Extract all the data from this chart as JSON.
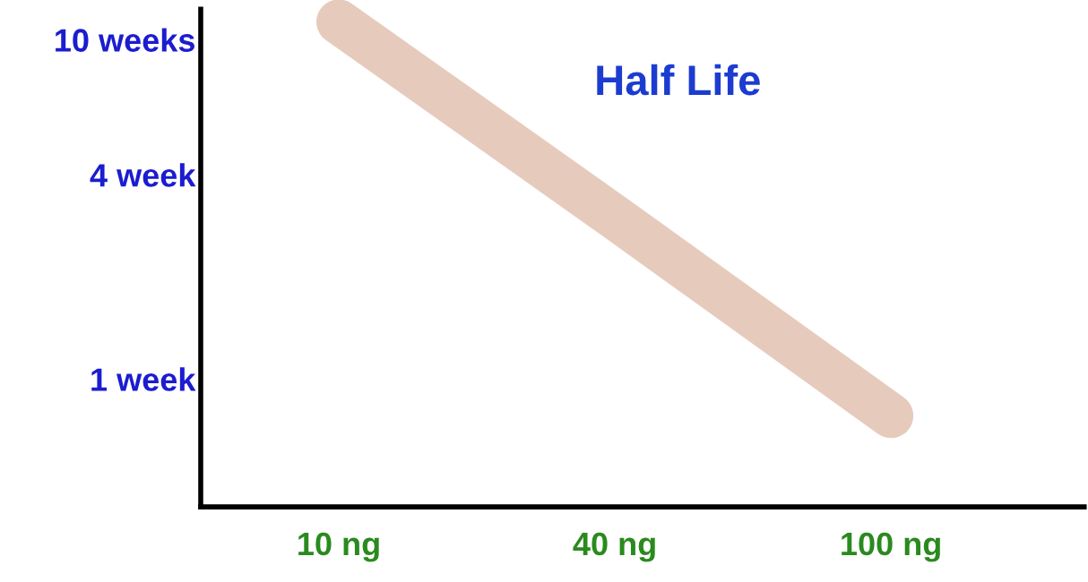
{
  "chart_data": {
    "type": "line",
    "title": "Half Life",
    "categories": [
      "10 ng",
      "40 ng",
      "100 ng"
    ],
    "series": [
      {
        "color": "#e6cbbd",
        "values": [
          11.3,
          3,
          0.78
        ]
      }
    ],
    "log": "y",
    "ylim": [
      0.42,
      12.3
    ],
    "yticks": [
      {
        "value": 1,
        "label": "1 week"
      },
      {
        "value": 4,
        "label": "4 week"
      },
      {
        "value": 10,
        "label": "10 weeks"
      }
    ],
    "grid": false,
    "legend": false,
    "line_style": "solid"
  }
}
